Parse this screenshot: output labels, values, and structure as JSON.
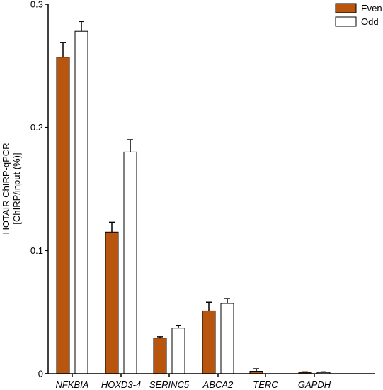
{
  "chart_data": {
    "type": "bar",
    "title": "",
    "ylabel_lines": [
      "HOTAIR ChIRP-qPCR",
      "[ChIRP/input (%)]"
    ],
    "xlabel": "",
    "categories": [
      "NFKBIA",
      "HOXD3-4",
      "SERINC5",
      "ABCA2",
      "TERC",
      "GAPDH"
    ],
    "series": [
      {
        "name": "Even",
        "color": "#b8560f",
        "values": [
          0.257,
          0.115,
          0.029,
          0.051,
          0.002,
          0.001
        ],
        "errors": [
          0.012,
          0.008,
          0.001,
          0.007,
          0.002,
          0.0005
        ]
      },
      {
        "name": "Odd",
        "color": "#ffffff",
        "values": [
          0.278,
          0.18,
          0.037,
          0.057,
          0.0,
          0.001
        ],
        "errors": [
          0.008,
          0.01,
          0.002,
          0.004,
          0.0,
          0.0005
        ]
      }
    ],
    "ylim": [
      0,
      0.3
    ],
    "yticks": [
      0,
      0.1,
      0.2,
      0.3
    ],
    "ytick_labels": [
      "0",
      "0.1",
      "0.2",
      "0.3"
    ],
    "legend_position": "top-right",
    "grid": false
  }
}
